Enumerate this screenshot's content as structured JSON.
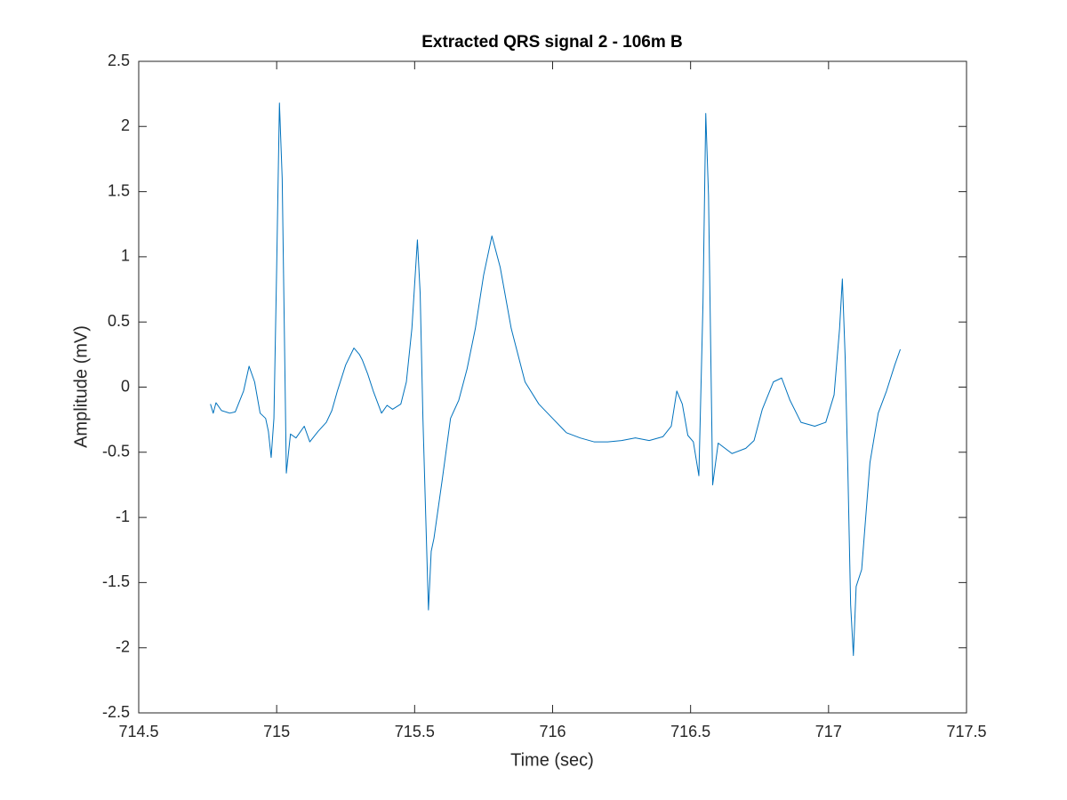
{
  "chart_data": {
    "type": "line",
    "title": "Extracted QRS signal 2 - 106m B",
    "x_label": "Time (sec)",
    "y_label": "Amplitude (mV)",
    "xlim": [
      714.5,
      717.5
    ],
    "xticks": [
      714.5,
      715,
      715.5,
      716,
      716.5,
      717,
      717.5
    ],
    "ylim": [
      -2.5,
      2.5
    ],
    "yticks": [
      2.5,
      2,
      1.5,
      1,
      0.5,
      0,
      -0.5,
      -1,
      -1.5,
      -2,
      -2.5
    ],
    "grid": false,
    "series": [
      {
        "color": "#0072bd",
        "x": [
          714.76,
          714.77,
          714.78,
          714.8,
          714.83,
          714.85,
          714.88,
          714.9,
          714.92,
          714.94,
          714.96,
          714.97,
          714.98,
          714.99,
          715.0,
          715.01,
          715.02,
          715.03,
          715.035,
          715.05,
          715.07,
          715.1,
          715.12,
          715.15,
          715.18,
          715.2,
          715.22,
          715.25,
          715.28,
          715.3,
          715.31,
          715.33,
          715.35,
          715.38,
          715.4,
          715.42,
          715.45,
          715.47,
          715.49,
          715.51,
          715.52,
          715.53,
          715.54,
          715.55,
          715.56,
          715.57,
          715.6,
          715.63,
          715.66,
          715.69,
          715.72,
          715.75,
          715.78,
          715.81,
          715.85,
          715.9,
          715.95,
          716.0,
          716.05,
          716.1,
          716.15,
          716.2,
          716.25,
          716.3,
          716.35,
          716.4,
          716.43,
          716.45,
          716.47,
          716.49,
          716.51,
          716.53,
          716.545,
          716.555,
          716.565,
          716.58,
          716.6,
          716.65,
          716.7,
          716.73,
          716.76,
          716.8,
          716.83,
          716.86,
          716.9,
          716.95,
          716.99,
          717.02,
          717.04,
          717.05,
          717.06,
          717.07,
          717.08,
          717.09,
          717.1,
          717.12,
          717.15,
          717.18,
          717.21,
          717.24,
          717.26
        ],
        "values": [
          -0.13,
          -0.2,
          -0.12,
          -0.18,
          -0.2,
          -0.19,
          -0.03,
          0.16,
          0.04,
          -0.2,
          -0.24,
          -0.34,
          -0.54,
          -0.24,
          0.92,
          2.18,
          1.6,
          0.1,
          -0.66,
          -0.36,
          -0.39,
          -0.3,
          -0.42,
          -0.34,
          -0.27,
          -0.18,
          -0.03,
          0.17,
          0.3,
          0.25,
          0.21,
          0.1,
          -0.03,
          -0.2,
          -0.14,
          -0.17,
          -0.13,
          0.04,
          0.45,
          1.13,
          0.72,
          -0.24,
          -0.98,
          -1.71,
          -1.26,
          -1.16,
          -0.71,
          -0.24,
          -0.1,
          0.14,
          0.45,
          0.86,
          1.16,
          0.92,
          0.45,
          0.04,
          -0.13,
          -0.24,
          -0.35,
          -0.39,
          -0.42,
          -0.42,
          -0.41,
          -0.39,
          -0.41,
          -0.38,
          -0.3,
          -0.03,
          -0.13,
          -0.37,
          -0.42,
          -0.68,
          0.65,
          2.1,
          1.47,
          -0.75,
          -0.43,
          -0.51,
          -0.47,
          -0.41,
          -0.17,
          0.04,
          0.07,
          -0.1,
          -0.27,
          -0.3,
          -0.27,
          -0.06,
          0.45,
          0.83,
          0.24,
          -0.64,
          -1.67,
          -2.06,
          -1.53,
          -1.4,
          -0.58,
          -0.2,
          -0.03,
          0.17,
          0.29
        ]
      }
    ]
  }
}
